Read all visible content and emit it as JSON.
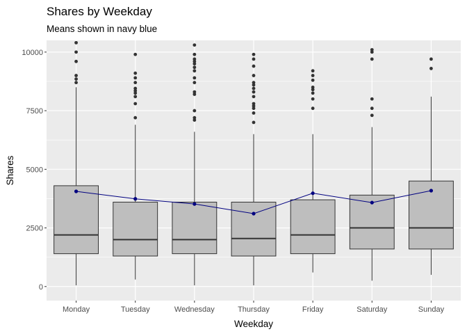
{
  "chart_data": {
    "type": "boxplot",
    "title": "Shares by Weekday",
    "subtitle": "Means shown in navy blue",
    "xlabel": "Weekday",
    "ylabel": "Shares",
    "ylim": [
      -600,
      10500
    ],
    "yticks": [
      0,
      2500,
      5000,
      7500,
      10000
    ],
    "ytick_labels": [
      "0",
      "2500",
      "5000",
      "7500",
      "10000"
    ],
    "grid": true,
    "legend": "none",
    "categories": [
      "Monday",
      "Tuesday",
      "Wednesday",
      "Thursday",
      "Friday",
      "Saturday",
      "Sunday"
    ],
    "boxes": [
      {
        "min": 50,
        "q1": 1400,
        "median": 2200,
        "q3": 4300,
        "max": 8500,
        "outliers": [
          8700,
          8850,
          9000,
          9600,
          10000,
          10400
        ]
      },
      {
        "min": 300,
        "q1": 1300,
        "median": 2000,
        "q3": 3600,
        "max": 6900,
        "outliers": [
          7200,
          7800,
          8100,
          8250,
          8350,
          8450,
          8700,
          8900,
          9100,
          9900
        ]
      },
      {
        "min": 50,
        "q1": 1400,
        "median": 2000,
        "q3": 3600,
        "max": 6600,
        "outliers": [
          7100,
          7200,
          7500,
          8200,
          8300,
          8700,
          8900,
          9200,
          9350,
          9500,
          9600,
          9700,
          9900,
          10300
        ]
      },
      {
        "min": 50,
        "q1": 1300,
        "median": 2050,
        "q3": 3600,
        "max": 6500,
        "outliers": [
          7000,
          7400,
          7600,
          7700,
          7800,
          8100,
          8300,
          8450,
          8600,
          8700,
          9000,
          9400,
          9700,
          9900
        ]
      },
      {
        "min": 600,
        "q1": 1400,
        "median": 2200,
        "q3": 3700,
        "max": 6500,
        "outliers": [
          7600,
          8000,
          8250,
          8400,
          8500,
          8800,
          9000,
          9200
        ]
      },
      {
        "min": 250,
        "q1": 1600,
        "median": 2500,
        "q3": 3900,
        "max": 6800,
        "outliers": [
          7300,
          7600,
          8000,
          9700,
          10000,
          10100
        ]
      },
      {
        "min": 500,
        "q1": 1600,
        "median": 2500,
        "q3": 4500,
        "max": 8100,
        "outliers": [
          9300,
          9700
        ]
      }
    ],
    "means": [
      4060,
      3740,
      3520,
      3110,
      3980,
      3580,
      4090
    ],
    "colors": {
      "panel": "#ebebeb",
      "grid": "#ffffff",
      "box_fill": "#bebebe",
      "box_line": "#333333",
      "outlier": "#333333",
      "mean": "#000080"
    }
  }
}
